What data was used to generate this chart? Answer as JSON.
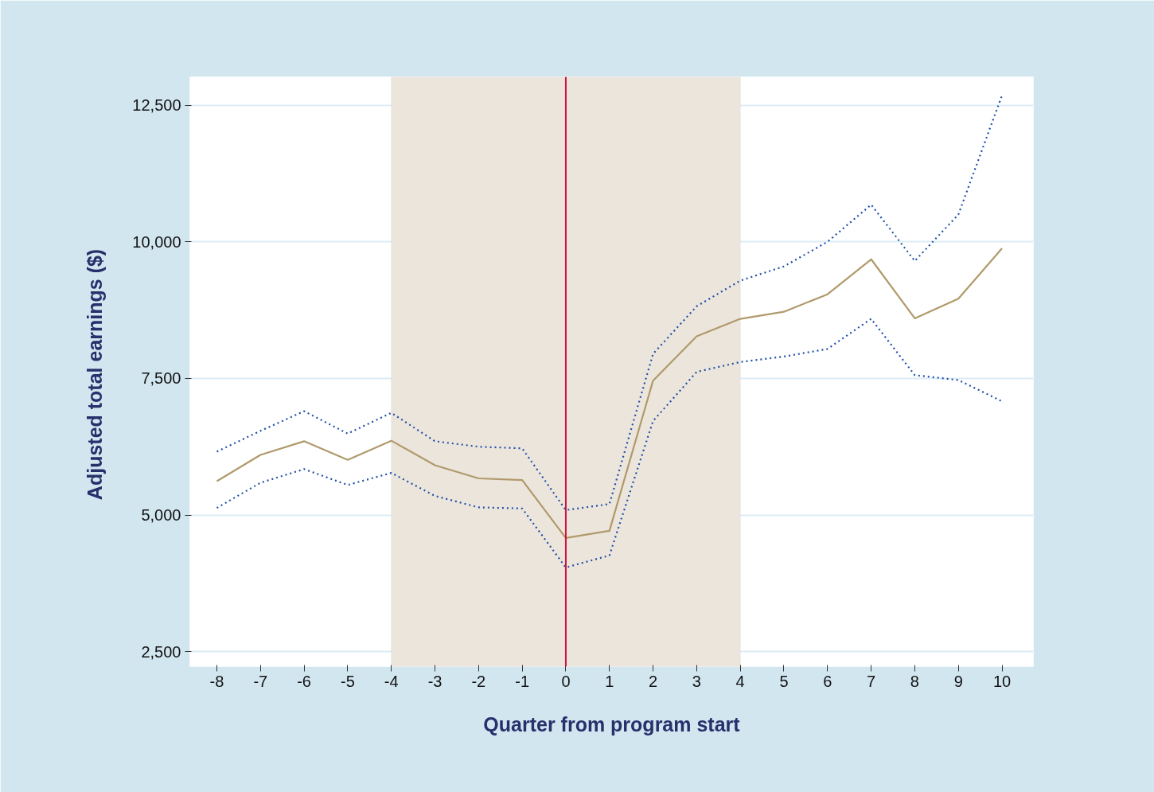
{
  "chart_data": {
    "type": "line",
    "xlabel": "Quarter from program start",
    "ylabel": "Adjusted  total earnings ($)",
    "x": [
      -8,
      -7,
      -6,
      -5,
      -4,
      -3,
      -2,
      -1,
      0,
      1,
      2,
      3,
      4,
      5,
      6,
      7,
      8,
      9,
      10
    ],
    "series": [
      {
        "color": "#b09a6b",
        "line_style": "solid",
        "values": [
          5620,
          6100,
          6350,
          6010,
          6360,
          5910,
          5670,
          5640,
          4580,
          4710,
          7460,
          8270,
          8590,
          8720,
          9040,
          9680,
          8600,
          8960,
          9880
        ]
      },
      {
        "color": "#1f4fa8",
        "line_style": "dotted",
        "values": [
          6160,
          6540,
          6900,
          6490,
          6870,
          6350,
          6250,
          6220,
          5090,
          5200,
          7950,
          8820,
          9290,
          9550,
          10000,
          10680,
          9650,
          10500,
          12680
        ]
      },
      {
        "color": "#1f4fa8",
        "line_style": "dotted",
        "values": [
          5130,
          5590,
          5840,
          5550,
          5770,
          5350,
          5140,
          5120,
          4040,
          4260,
          6720,
          7620,
          7800,
          7900,
          8040,
          8590,
          7560,
          7470,
          7080
        ]
      }
    ],
    "xlim": [
      -8.62,
      10.72
    ],
    "ylim": [
      2225,
      13020
    ],
    "xticks": [
      -8,
      -7,
      -6,
      -5,
      -4,
      -3,
      -2,
      -1,
      0,
      1,
      2,
      3,
      4,
      5,
      6,
      7,
      8,
      9,
      10
    ],
    "yticks": [
      {
        "value": 2500,
        "label": "2,500"
      },
      {
        "value": 5000,
        "label": "5,000"
      },
      {
        "value": 7500,
        "label": "7,500"
      },
      {
        "value": 10000,
        "label": "10,000"
      },
      {
        "value": 12500,
        "label": "12,500"
      }
    ],
    "bands": [
      {
        "axis": "x",
        "from": -4,
        "to": 4,
        "color": "#ece5dc"
      }
    ],
    "ref_lines": [
      {
        "axis": "x",
        "value": 0,
        "color": "#d0103a"
      }
    ],
    "grid": "y",
    "marker": "none"
  }
}
